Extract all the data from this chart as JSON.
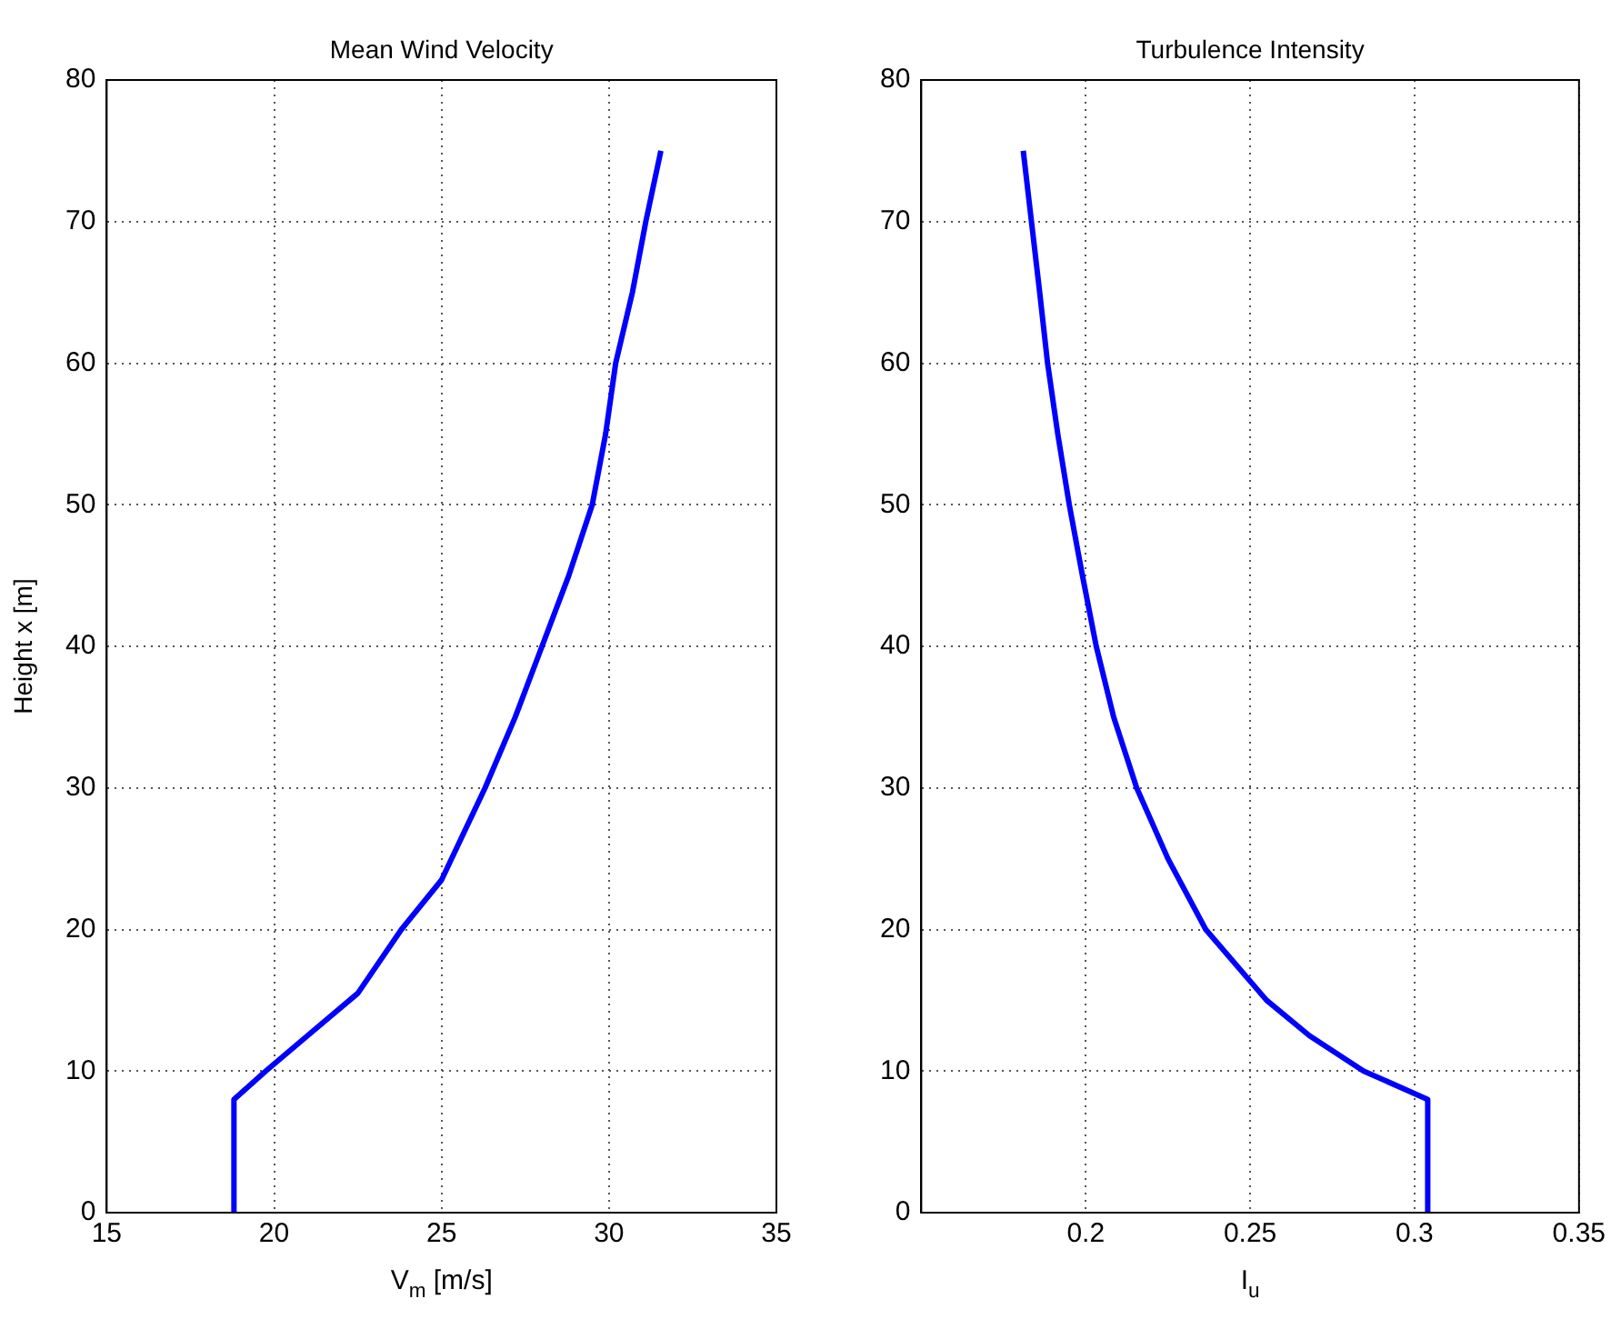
{
  "chart_data": [
    {
      "type": "line",
      "title": "Mean Wind Velocity",
      "xlabel": "V$_{m}$ [m/s]",
      "ylabel": "Height x [m]",
      "xlim": [
        15,
        35
      ],
      "xticks": [
        15,
        20,
        25,
        30,
        35
      ],
      "ylim": [
        0,
        80
      ],
      "yticks": [
        0,
        10,
        20,
        30,
        40,
        50,
        60,
        70,
        80
      ],
      "grid": true,
      "legend": false,
      "marker": "none",
      "line_style": "solid",
      "series": [
        {
          "color": "#0000ff",
          "x": [
            18.8,
            18.8,
            19.75,
            21,
            22.5,
            23.8,
            25,
            26.3,
            27.2,
            28,
            28.8,
            29.5,
            29.9,
            30.2,
            30.7,
            31.1,
            31.55
          ],
          "values": [
            0,
            8,
            10,
            12.5,
            15.5,
            20,
            23.5,
            30,
            35,
            40,
            45,
            50,
            55,
            60,
            65,
            70,
            75
          ]
        }
      ]
    },
    {
      "type": "line",
      "title": "Turbulence Intensity",
      "xlabel": "I$_{u}$",
      "xlim": [
        0.15,
        0.35
      ],
      "xticks": [
        {
          "value": 0.15,
          "label": null
        },
        0.2,
        0.25,
        0.3,
        0.35
      ],
      "ylim": [
        0,
        80
      ],
      "yticks": [
        0,
        10,
        20,
        30,
        40,
        50,
        60,
        70,
        80
      ],
      "grid": true,
      "legend": false,
      "marker": "none",
      "line_style": "solid",
      "series": [
        {
          "color": "#0000ff",
          "x": [
            0.304,
            0.304,
            0.2845,
            0.268,
            0.255,
            0.2365,
            0.225,
            0.2155,
            0.2085,
            0.2032,
            0.199,
            0.195,
            0.1915,
            0.1884,
            0.186,
            0.1835,
            0.181
          ],
          "values": [
            0,
            8,
            10,
            12.5,
            15,
            20,
            25,
            30,
            35,
            40,
            45,
            50,
            55,
            60,
            65,
            70,
            75
          ]
        }
      ]
    }
  ]
}
